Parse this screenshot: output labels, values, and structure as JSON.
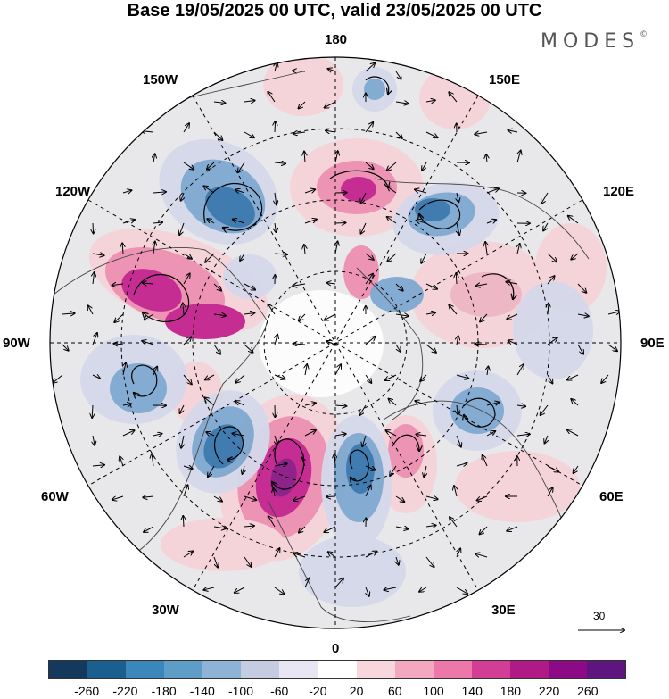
{
  "title": "Base 19/05/2025 00 UTC, valid 23/05/2025 00 UTC",
  "brand": {
    "name": "MODES",
    "mark": "©"
  },
  "map": {
    "projection": "north-polar-stereographic",
    "longitude_labels": {
      "top": "180",
      "upper_left": "150W",
      "upper_right": "150E",
      "mid_upper_left": "120W",
      "mid_upper_right": "120E",
      "left": "90W",
      "right": "90E",
      "mid_lower_left": "60W",
      "mid_lower_right": "60E",
      "lower_left": "30W",
      "lower_right": "30E",
      "bottom": "0"
    },
    "reference_vector": {
      "value": "30"
    },
    "anomaly_colors": {
      "positive_light": "#f6d3d8",
      "positive_mid": "#ee8fb0",
      "positive_strong": "#c4238f",
      "positive_max": "#8a1a84",
      "negative_light": "#d4d8ea",
      "negative_mid": "#7fa8d0",
      "negative_strong": "#3877ad",
      "negative_max": "#1f5a8f",
      "neutral": "#e8e8ea"
    }
  },
  "colorbar": {
    "colors": [
      "#14395d",
      "#1b5f8f",
      "#3b86ba",
      "#5e9dc8",
      "#8fb3d6",
      "#c5cbe1",
      "#e8e6f2",
      "#ffffff",
      "#f7d6dc",
      "#f2a9bf",
      "#eb78a9",
      "#d43d96",
      "#b01a87",
      "#8c0a86",
      "#5e1580"
    ],
    "ticks": [
      "-260",
      "-220",
      "-180",
      "-140",
      "-100",
      "-60",
      "-20",
      "20",
      "60",
      "100",
      "140",
      "180",
      "220",
      "260"
    ]
  }
}
